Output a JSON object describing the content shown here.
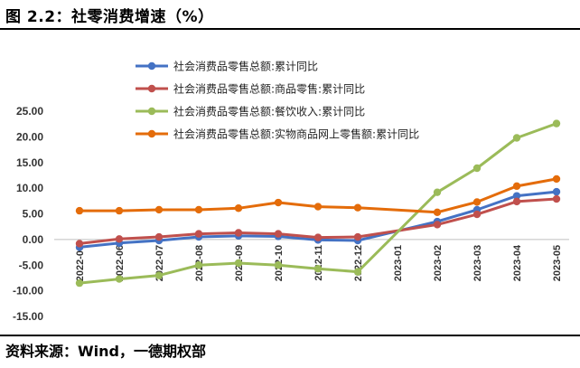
{
  "figure": {
    "title": "图 2.2：社零消费增速（%）",
    "source": "资料来源：Wind，一德期权部"
  },
  "chart_data": {
    "type": "line",
    "title": "",
    "xlabel": "",
    "ylabel": "",
    "ylim": [
      -15,
      25
    ],
    "yticks": [
      "25.00",
      "20.00",
      "15.00",
      "10.00",
      "5.00",
      "0.00",
      "-5.00",
      "-10.00",
      "-15.00"
    ],
    "categories": [
      "2022-05",
      "2022-06",
      "2022-07",
      "2022-08",
      "2022-09",
      "2022-10",
      "2022-11",
      "2022-12",
      "2023-01",
      "2023-02",
      "2023-03",
      "2023-04",
      "2023-05"
    ],
    "legend_position": "top",
    "grid": false,
    "series": [
      {
        "name": "社会消费品零售总额:累计同比",
        "color": "#4472C4",
        "values": [
          -1.5,
          -0.7,
          -0.2,
          0.5,
          0.7,
          0.6,
          -0.1,
          -0.2,
          null,
          3.5,
          5.8,
          8.5,
          9.3
        ]
      },
      {
        "name": "社会消费品零售总额:商品零售:累计同比",
        "color": "#C0504D",
        "values": [
          -0.8,
          0.1,
          0.5,
          1.1,
          1.3,
          1.1,
          0.4,
          0.5,
          null,
          2.9,
          4.9,
          7.4,
          7.9
        ]
      },
      {
        "name": "社会消费品零售总额:餐饮收入:累计同比",
        "color": "#9BBB59",
        "values": [
          -8.5,
          -7.7,
          -7.0,
          -5.0,
          -4.6,
          -5.0,
          -5.7,
          -6.3,
          null,
          9.2,
          13.9,
          19.8,
          22.6
        ]
      },
      {
        "name": "社会消费品零售总额:实物商品网上零售额:累计同比",
        "color": "#E46C0A",
        "values": [
          5.6,
          5.6,
          5.8,
          5.8,
          6.1,
          7.2,
          6.4,
          6.2,
          null,
          5.3,
          7.3,
          10.4,
          11.8
        ]
      }
    ]
  }
}
